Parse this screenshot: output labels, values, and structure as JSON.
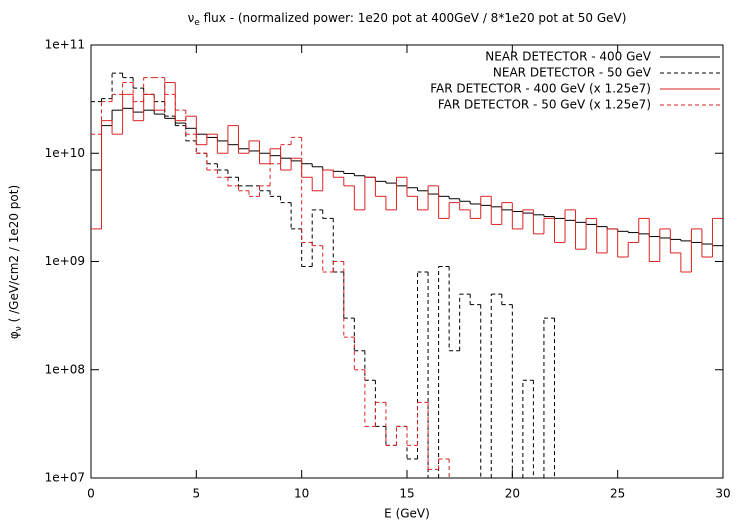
{
  "chart_data": {
    "type": "histogram",
    "title_symbol": "ν",
    "title_subscript": "e",
    "title_text": " flux  - (normalized power: 1e20 pot at 400GeV / 8*1e20 pot at 50 GeV)",
    "x_label": "E (GeV)",
    "y_label_symbol": "φ",
    "y_label_subscript": "ν",
    "y_label_text": " ( /GeV/cm2 / 1e20 pot)",
    "log_y": true,
    "legend": "top-right",
    "xlim": [
      0,
      30
    ],
    "xticks": [
      0,
      5,
      10,
      15,
      20,
      25,
      30
    ],
    "ylim": [
      10000000,
      100000000000
    ],
    "yticks": [
      {
        "value": 10000000,
        "label": "1e+07"
      },
      {
        "value": 100000000,
        "label": "1e+08"
      },
      {
        "value": 1000000000,
        "label": "1e+09"
      },
      {
        "value": 10000000000,
        "label": "1e+10"
      },
      {
        "value": 100000000000,
        "label": "1e+11"
      }
    ],
    "bins": [
      0,
      0.5,
      1,
      1.5,
      2,
      2.5,
      3,
      3.5,
      4,
      4.5,
      5,
      5.5,
      6,
      6.5,
      7,
      7.5,
      8,
      8.5,
      9,
      9.5,
      10,
      10.5,
      11,
      11.5,
      12,
      12.5,
      13,
      13.5,
      14,
      14.5,
      15,
      15.5,
      16,
      16.5,
      17,
      17.5,
      18,
      18.5,
      19,
      19.5,
      20,
      20.5,
      21,
      21.5,
      22,
      22.5,
      23,
      23.5,
      24,
      24.5,
      25,
      25.5,
      26,
      26.5,
      27,
      27.5,
      28,
      28.5,
      29,
      29.5,
      30
    ],
    "series": [
      {
        "name": "NEAR DETECTOR - 400 GeV",
        "color": "#000000",
        "dash": false,
        "values": [
          7000000000.0,
          18000000000.0,
          25000000000.0,
          26000000000.0,
          24000000000.0,
          25000000000.0,
          23000000000.0,
          21000000000.0,
          19000000000.0,
          17000000000.0,
          15000000000.0,
          14000000000.0,
          13000000000.0,
          12000000000.0,
          11000000000.0,
          10500000000.0,
          10000000000.0,
          9500000000.0,
          9000000000.0,
          8500000000.0,
          8000000000.0,
          7500000000.0,
          7000000000.0,
          6800000000.0,
          6500000000.0,
          6200000000.0,
          6000000000.0,
          5500000000.0,
          5300000000.0,
          5000000000.0,
          4800000000.0,
          4500000000.0,
          4200000000.0,
          4000000000.0,
          3800000000.0,
          3600000000.0,
          3400000000.0,
          3300000000.0,
          3200000000.0,
          3000000000.0,
          2900000000.0,
          2800000000.0,
          2700000000.0,
          2600000000.0,
          2500000000.0,
          2400000000.0,
          2300000000.0,
          2200000000.0,
          2100000000.0,
          2000000000.0,
          1900000000.0,
          1850000000.0,
          1800000000.0,
          1700000000.0,
          1650000000.0,
          1600000000.0,
          1550000000.0,
          1500000000.0,
          1450000000.0,
          1400000000.0
        ]
      },
      {
        "name": "NEAR DETECTOR - 50 GeV",
        "color": "#000000",
        "dash": true,
        "values": [
          30000000000.0,
          32000000000.0,
          55000000000.0,
          50000000000.0,
          40000000000.0,
          35000000000.0,
          30000000000.0,
          22000000000.0,
          18000000000.0,
          13000000000.0,
          10000000000.0,
          8000000000.0,
          7000000000.0,
          6000000000.0,
          5000000000.0,
          5000000000.0,
          4500000000.0,
          4000000000.0,
          3500000000.0,
          2000000000.0,
          900000000.0,
          3000000000.0,
          2500000000.0,
          800000000.0,
          300000000.0,
          150000000.0,
          80000000.0,
          30000000.0,
          20000000.0,
          30000000.0,
          15000000.0,
          800000000.0,
          null,
          900000000.0,
          150000000.0,
          500000000.0,
          400000000.0,
          null,
          500000000.0,
          400000000.0,
          null,
          80000000.0,
          null,
          300000000.0,
          null,
          null,
          null,
          null,
          null,
          null,
          null,
          null,
          null,
          null,
          null,
          null,
          null,
          null,
          null,
          null
        ]
      },
      {
        "name": "FAR DETECTOR - 400 GeV (x 1.25e7)",
        "color": "#dd2222",
        "dash": false,
        "values": [
          2000000000.0,
          20000000000.0,
          15000000000.0,
          35000000000.0,
          20000000000.0,
          35000000000.0,
          25000000000.0,
          45000000000.0,
          20000000000.0,
          22000000000.0,
          12000000000.0,
          15000000000.0,
          10000000000.0,
          18000000000.0,
          10000000000.0,
          13000000000.0,
          8000000000.0,
          11000000000.0,
          7000000000.0,
          9000000000.0,
          6000000000.0,
          4500000000.0,
          7000000000.0,
          6000000000.0,
          5000000000.0,
          3000000000.0,
          6000000000.0,
          4000000000.0,
          3000000000.0,
          6000000000.0,
          4000000000.0,
          3000000000.0,
          5000000000.0,
          2500000000.0,
          3500000000.0,
          3000000000.0,
          2500000000.0,
          4000000000.0,
          2200000000.0,
          3500000000.0,
          2000000000.0,
          3000000000.0,
          1800000000.0,
          2500000000.0,
          1500000000.0,
          3000000000.0,
          1300000000.0,
          2500000000.0,
          1200000000.0,
          2000000000.0,
          1100000000.0,
          1500000000.0,
          2500000000.0,
          1000000000.0,
          2000000000.0,
          1200000000.0,
          800000000.0,
          2000000000.0,
          1100000000.0,
          2500000000.0
        ]
      },
      {
        "name": "FAR DETECTOR - 50 GeV (x 1.25e7)",
        "color": "#dd2222",
        "dash": true,
        "values": [
          15000000000.0,
          30000000000.0,
          35000000000.0,
          45000000000.0,
          30000000000.0,
          50000000000.0,
          50000000000.0,
          35000000000.0,
          25000000000.0,
          15000000000.0,
          10000000000.0,
          7000000000.0,
          6000000000.0,
          5000000000.0,
          4500000000.0,
          4000000000.0,
          5000000000.0,
          8000000000.0,
          12000000000.0,
          14000000000.0,
          1500000000.0,
          1400000000.0,
          800000000.0,
          1000000000.0,
          200000000.0,
          100000000.0,
          30000000.0,
          50000000.0,
          20000000.0,
          30000000.0,
          20000000.0,
          50000000.0,
          12000000.0,
          15000000.0,
          null,
          null,
          null,
          null,
          null,
          null,
          null,
          null,
          null,
          null,
          null,
          null,
          null,
          null,
          null,
          null,
          null,
          null,
          null,
          null,
          null,
          null,
          null,
          null,
          null,
          null
        ]
      }
    ]
  }
}
